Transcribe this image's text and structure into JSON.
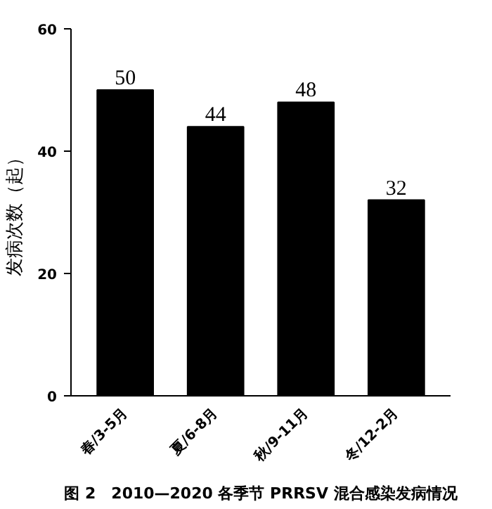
{
  "chart_data": {
    "type": "bar",
    "title": "图 2　2010—2020 各季节 PRRSV 混合感染发病情况",
    "ylabel": "发病次数（起）",
    "categories": [
      "春/3-5月",
      "夏/6-8月",
      "秋/9-11月",
      "冬/12-2月"
    ],
    "values": [
      50,
      44,
      48,
      32
    ],
    "color": "#000000",
    "ylim": [
      0,
      60
    ],
    "yticks": [
      0,
      20,
      40,
      60
    ],
    "data_labels": true
  }
}
